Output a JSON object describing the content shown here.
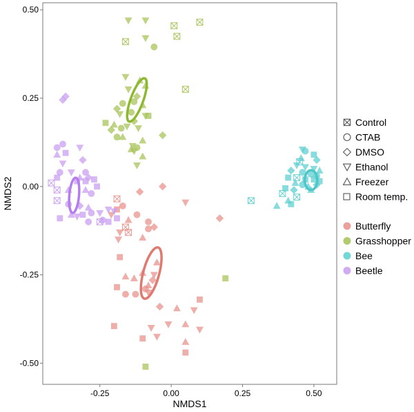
{
  "chart_data": {
    "type": "scatter",
    "title": "",
    "xlabel": "NMDS1",
    "ylabel": "NMDS2",
    "xlim": [
      -0.45,
      0.58
    ],
    "ylim": [
      -0.56,
      0.52
    ],
    "x_ticks": [
      -0.25,
      0.0,
      0.25,
      0.5
    ],
    "y_ticks": [
      0.5,
      0.25,
      0.0,
      -0.25,
      -0.5
    ],
    "x_tick_labels": [
      "-0.25",
      "0.00",
      "0.25",
      "0.50"
    ],
    "y_tick_labels": [
      "0.50",
      "0.25",
      "0.00",
      "-0.25",
      "-0.50"
    ],
    "grid": false,
    "legend_position": "right",
    "shape_legend": [
      {
        "key": "control",
        "label": "Control",
        "icon": "crossed-square-icon"
      },
      {
        "key": "ctab",
        "label": "CTAB",
        "icon": "circle-icon"
      },
      {
        "key": "dmso",
        "label": "DMSO",
        "icon": "diamond-icon"
      },
      {
        "key": "ethanol",
        "label": "Ethanol",
        "icon": "down-triangle-icon"
      },
      {
        "key": "freezer",
        "label": "Freezer",
        "icon": "up-triangle-icon"
      },
      {
        "key": "room",
        "label": "Room temp.",
        "icon": "square-icon"
      }
    ],
    "color_legend": [
      {
        "key": "butterfly",
        "label": "Butterfly",
        "color": "#E8908A"
      },
      {
        "key": "grasshopper",
        "label": "Grasshopper",
        "color": "#A6C256"
      },
      {
        "key": "bee",
        "label": "Bee",
        "color": "#5CCFD0"
      },
      {
        "key": "beetle",
        "label": "Beetle",
        "color": "#C89CF0"
      }
    ],
    "ellipse_colors": {
      "butterfly": "#E07A70",
      "grasshopper": "#8DB830",
      "bee": "#4CC6C8",
      "beetle": "#B57DEE"
    },
    "ellipses": [
      {
        "group": "butterfly",
        "cx": -0.07,
        "cy": -0.245,
        "rx": 0.028,
        "ry": 0.075,
        "angle_deg": -15
      },
      {
        "group": "grasshopper",
        "cx": -0.12,
        "cy": 0.245,
        "rx": 0.022,
        "ry": 0.065,
        "angle_deg": -20
      },
      {
        "group": "bee",
        "cx": 0.49,
        "cy": 0.018,
        "rx": 0.022,
        "ry": 0.028,
        "angle_deg": 0
      },
      {
        "group": "beetle",
        "cx": -0.34,
        "cy": -0.025,
        "rx": 0.017,
        "ry": 0.05,
        "angle_deg": -5
      }
    ],
    "series": [
      {
        "group": "butterfly",
        "points": [
          {
            "x": -0.03,
            "y": 0.0,
            "m": "dmso"
          },
          {
            "x": 0.05,
            "y": -0.045,
            "m": "ethanol"
          },
          {
            "x": -0.06,
            "y": -0.115,
            "m": "dmso"
          },
          {
            "x": -0.11,
            "y": -0.015,
            "m": "dmso"
          },
          {
            "x": 0.17,
            "y": -0.09,
            "m": "dmso"
          },
          {
            "x": -0.19,
            "y": -0.035,
            "m": "control"
          },
          {
            "x": -0.17,
            "y": -0.055,
            "m": "circle"
          },
          {
            "x": -0.19,
            "y": -0.065,
            "m": "room"
          },
          {
            "x": -0.21,
            "y": -0.08,
            "m": "ethanol"
          },
          {
            "x": -0.15,
            "y": -0.095,
            "m": "freezer"
          },
          {
            "x": -0.12,
            "y": -0.08,
            "m": "circle"
          },
          {
            "x": -0.16,
            "y": -0.115,
            "m": "control"
          },
          {
            "x": -0.18,
            "y": -0.13,
            "m": "ethanol"
          },
          {
            "x": -0.15,
            "y": -0.13,
            "m": "control"
          },
          {
            "x": -0.185,
            "y": -0.15,
            "m": "ethanol"
          },
          {
            "x": -0.08,
            "y": -0.1,
            "m": "circle"
          },
          {
            "x": -0.08,
            "y": -0.12,
            "m": "circle"
          },
          {
            "x": -0.1,
            "y": -0.145,
            "m": "freezer"
          },
          {
            "x": -0.06,
            "y": -0.25,
            "m": "ethanol"
          },
          {
            "x": -0.05,
            "y": -0.215,
            "m": "freezer"
          },
          {
            "x": -0.065,
            "y": -0.265,
            "m": "dmso"
          },
          {
            "x": -0.08,
            "y": -0.28,
            "m": "freezer"
          },
          {
            "x": -0.18,
            "y": -0.2,
            "m": "room"
          },
          {
            "x": -0.16,
            "y": -0.255,
            "m": "freezer"
          },
          {
            "x": -0.13,
            "y": -0.26,
            "m": "freezer"
          },
          {
            "x": -0.1,
            "y": -0.245,
            "m": "freezer"
          },
          {
            "x": -0.19,
            "y": -0.285,
            "m": "room"
          },
          {
            "x": -0.16,
            "y": -0.305,
            "m": "circle"
          },
          {
            "x": -0.125,
            "y": -0.305,
            "m": "circle"
          },
          {
            "x": -0.09,
            "y": -0.29,
            "m": "circle"
          },
          {
            "x": -0.08,
            "y": -0.3,
            "m": "ethanol"
          },
          {
            "x": -0.04,
            "y": -0.34,
            "m": "dmso"
          },
          {
            "x": -0.01,
            "y": -0.39,
            "m": "ethanol"
          },
          {
            "x": 0.02,
            "y": -0.345,
            "m": "freezer"
          },
          {
            "x": 0.1,
            "y": -0.32,
            "m": "room"
          },
          {
            "x": 0.08,
            "y": -0.35,
            "m": "ethanol"
          },
          {
            "x": 0.05,
            "y": -0.39,
            "m": "freezer"
          },
          {
            "x": 0.1,
            "y": -0.405,
            "m": "ethanol"
          },
          {
            "x": -0.07,
            "y": -0.4,
            "m": "ethanol"
          },
          {
            "x": -0.05,
            "y": -0.425,
            "m": "ethanol"
          },
          {
            "x": -0.1,
            "y": -0.43,
            "m": "room"
          },
          {
            "x": -0.2,
            "y": -0.395,
            "m": "room"
          },
          {
            "x": 0.05,
            "y": -0.47,
            "m": "room"
          },
          {
            "x": 0.05,
            "y": -0.44,
            "m": "freezer"
          }
        ]
      },
      {
        "group": "grasshopper",
        "points": [
          {
            "x": -0.09,
            "y": 0.47,
            "m": "ethanol"
          },
          {
            "x": -0.15,
            "y": 0.47,
            "m": "ethanol"
          },
          {
            "x": -0.09,
            "y": 0.42,
            "m": "ethanol"
          },
          {
            "x": -0.06,
            "y": 0.395,
            "m": "circle"
          },
          {
            "x": -0.16,
            "y": 0.41,
            "m": "control"
          },
          {
            "x": 0.01,
            "y": 0.455,
            "m": "control"
          },
          {
            "x": 0.02,
            "y": 0.425,
            "m": "control"
          },
          {
            "x": 0.1,
            "y": 0.465,
            "m": "control"
          },
          {
            "x": 0.05,
            "y": 0.275,
            "m": "control"
          },
          {
            "x": -0.16,
            "y": 0.31,
            "m": "ethanol"
          },
          {
            "x": -0.11,
            "y": 0.3,
            "m": "freezer"
          },
          {
            "x": -0.09,
            "y": 0.285,
            "m": "freezer"
          },
          {
            "x": -0.15,
            "y": 0.275,
            "m": "ethanol"
          },
          {
            "x": -0.12,
            "y": 0.255,
            "m": "dmso"
          },
          {
            "x": -0.13,
            "y": 0.24,
            "m": "circle"
          },
          {
            "x": -0.17,
            "y": 0.235,
            "m": "circle"
          },
          {
            "x": -0.14,
            "y": 0.21,
            "m": "circle"
          },
          {
            "x": -0.19,
            "y": 0.22,
            "m": "dmso"
          },
          {
            "x": -0.18,
            "y": 0.205,
            "m": "ethanol"
          },
          {
            "x": -0.1,
            "y": 0.23,
            "m": "freezer"
          },
          {
            "x": -0.09,
            "y": 0.2,
            "m": "ethanol"
          },
          {
            "x": -0.08,
            "y": 0.2,
            "m": "room"
          },
          {
            "x": -0.13,
            "y": 0.185,
            "m": "dmso"
          },
          {
            "x": -0.155,
            "y": 0.17,
            "m": "ethanol"
          },
          {
            "x": -0.175,
            "y": 0.165,
            "m": "circle"
          },
          {
            "x": -0.2,
            "y": 0.175,
            "m": "freezer"
          },
          {
            "x": -0.23,
            "y": 0.18,
            "m": "room"
          },
          {
            "x": -0.21,
            "y": 0.16,
            "m": "dmso"
          },
          {
            "x": -0.17,
            "y": 0.14,
            "m": "freezer"
          },
          {
            "x": -0.19,
            "y": 0.14,
            "m": "circle"
          },
          {
            "x": -0.115,
            "y": 0.165,
            "m": "ethanol"
          },
          {
            "x": -0.1,
            "y": 0.13,
            "m": "freezer"
          },
          {
            "x": -0.12,
            "y": 0.11,
            "m": "circle"
          },
          {
            "x": -0.135,
            "y": 0.115,
            "m": "ethanol"
          },
          {
            "x": -0.14,
            "y": 0.105,
            "m": "freezer"
          },
          {
            "x": -0.03,
            "y": 0.145,
            "m": "dmso"
          },
          {
            "x": -0.13,
            "y": 0.1,
            "m": "ethanol"
          },
          {
            "x": -0.1,
            "y": 0.085,
            "m": "freezer"
          },
          {
            "x": -0.12,
            "y": 0.06,
            "m": "ethanol"
          },
          {
            "x": 0.19,
            "y": -0.26,
            "m": "room"
          },
          {
            "x": -0.09,
            "y": -0.51,
            "m": "room"
          }
        ]
      },
      {
        "group": "bee",
        "points": [
          {
            "x": 0.46,
            "y": 0.105,
            "m": "ethanol"
          },
          {
            "x": 0.47,
            "y": 0.1,
            "m": "circle"
          },
          {
            "x": 0.5,
            "y": 0.09,
            "m": "room"
          },
          {
            "x": 0.455,
            "y": 0.08,
            "m": "freezer"
          },
          {
            "x": 0.51,
            "y": 0.075,
            "m": "dmso"
          },
          {
            "x": 0.45,
            "y": 0.07,
            "m": "control"
          },
          {
            "x": 0.44,
            "y": 0.06,
            "m": "ethanol"
          },
          {
            "x": 0.47,
            "y": 0.055,
            "m": "ethanol"
          },
          {
            "x": 0.5,
            "y": 0.05,
            "m": "ethanol"
          },
          {
            "x": 0.52,
            "y": 0.045,
            "m": "freezer"
          },
          {
            "x": 0.42,
            "y": 0.045,
            "m": "dmso"
          },
          {
            "x": 0.46,
            "y": 0.04,
            "m": "circle"
          },
          {
            "x": 0.49,
            "y": 0.035,
            "m": "circle"
          },
          {
            "x": 0.51,
            "y": 0.03,
            "m": "circle"
          },
          {
            "x": 0.41,
            "y": 0.025,
            "m": "room"
          },
          {
            "x": 0.44,
            "y": 0.025,
            "m": "control"
          },
          {
            "x": 0.47,
            "y": 0.02,
            "m": "room"
          },
          {
            "x": 0.5,
            "y": 0.02,
            "m": "room"
          },
          {
            "x": 0.52,
            "y": 0.015,
            "m": "room"
          },
          {
            "x": 0.435,
            "y": 0.01,
            "m": "freezer"
          },
          {
            "x": 0.46,
            "y": 0.005,
            "m": "circle"
          },
          {
            "x": 0.48,
            "y": 0.0,
            "m": "freezer"
          },
          {
            "x": 0.51,
            "y": 0.005,
            "m": "dmso"
          },
          {
            "x": 0.4,
            "y": -0.005,
            "m": "room"
          },
          {
            "x": 0.43,
            "y": -0.01,
            "m": "dmso"
          },
          {
            "x": 0.49,
            "y": -0.01,
            "m": "freezer"
          },
          {
            "x": 0.39,
            "y": -0.02,
            "m": "control"
          },
          {
            "x": 0.44,
            "y": -0.03,
            "m": "control"
          },
          {
            "x": 0.41,
            "y": -0.04,
            "m": "freezer"
          },
          {
            "x": 0.42,
            "y": -0.05,
            "m": "room"
          },
          {
            "x": 0.37,
            "y": -0.055,
            "m": "freezer"
          },
          {
            "x": 0.28,
            "y": -0.04,
            "m": "control"
          }
        ]
      },
      {
        "group": "beetle",
        "points": [
          {
            "x": -0.37,
            "y": 0.255,
            "m": "dmso"
          },
          {
            "x": -0.38,
            "y": 0.245,
            "m": "dmso"
          },
          {
            "x": -0.4,
            "y": 0.11,
            "m": "circle"
          },
          {
            "x": -0.38,
            "y": 0.12,
            "m": "circle"
          },
          {
            "x": -0.37,
            "y": 0.095,
            "m": "room"
          },
          {
            "x": -0.32,
            "y": 0.11,
            "m": "ethanol"
          },
          {
            "x": -0.4,
            "y": 0.09,
            "m": "freezer"
          },
          {
            "x": -0.31,
            "y": 0.075,
            "m": "dmso"
          },
          {
            "x": -0.38,
            "y": 0.065,
            "m": "ethanol"
          },
          {
            "x": -0.35,
            "y": 0.04,
            "m": "ethanol"
          },
          {
            "x": -0.39,
            "y": 0.04,
            "m": "circle"
          },
          {
            "x": -0.4,
            "y": 0.025,
            "m": "room"
          },
          {
            "x": -0.3,
            "y": 0.04,
            "m": "circle"
          },
          {
            "x": -0.33,
            "y": 0.015,
            "m": "room"
          },
          {
            "x": -0.32,
            "y": 0.025,
            "m": "freezer"
          },
          {
            "x": -0.3,
            "y": 0.015,
            "m": "room"
          },
          {
            "x": -0.29,
            "y": 0.025,
            "m": "dmso"
          },
          {
            "x": -0.27,
            "y": 0.02,
            "m": "room"
          },
          {
            "x": -0.26,
            "y": 0.0,
            "m": "room"
          },
          {
            "x": -0.42,
            "y": 0.01,
            "m": "control"
          },
          {
            "x": -0.4,
            "y": -0.01,
            "m": "control"
          },
          {
            "x": -0.36,
            "y": -0.01,
            "m": "freezer"
          },
          {
            "x": -0.3,
            "y": -0.01,
            "m": "freezer"
          },
          {
            "x": -0.28,
            "y": -0.02,
            "m": "circle"
          },
          {
            "x": -0.4,
            "y": -0.04,
            "m": "control"
          },
          {
            "x": -0.36,
            "y": -0.05,
            "m": "circle"
          },
          {
            "x": -0.32,
            "y": -0.055,
            "m": "dmso"
          },
          {
            "x": -0.29,
            "y": -0.06,
            "m": "freezer"
          },
          {
            "x": -0.35,
            "y": -0.08,
            "m": "freezer"
          },
          {
            "x": -0.39,
            "y": -0.09,
            "m": "room"
          },
          {
            "x": -0.33,
            "y": -0.085,
            "m": "ethanol"
          },
          {
            "x": -0.31,
            "y": -0.08,
            "m": "room"
          },
          {
            "x": -0.28,
            "y": -0.075,
            "m": "circle"
          },
          {
            "x": -0.25,
            "y": -0.075,
            "m": "ethanol"
          },
          {
            "x": -0.22,
            "y": -0.065,
            "m": "ethanol"
          },
          {
            "x": -0.2,
            "y": -0.07,
            "m": "ethanol"
          },
          {
            "x": -0.24,
            "y": -0.095,
            "m": "circle"
          },
          {
            "x": -0.25,
            "y": -0.1,
            "m": "control"
          },
          {
            "x": -0.29,
            "y": -0.1,
            "m": "circle"
          },
          {
            "x": -0.22,
            "y": -0.1,
            "m": "room"
          },
          {
            "x": -0.19,
            "y": -0.09,
            "m": "room"
          }
        ]
      }
    ]
  }
}
